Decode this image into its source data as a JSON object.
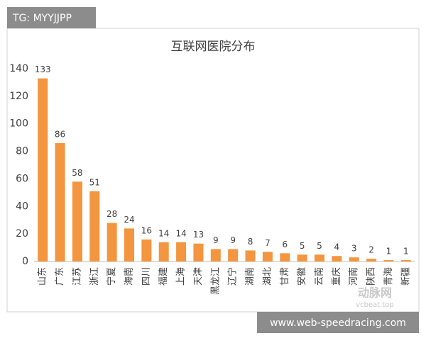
{
  "header": {
    "tag": "TG: MYYJJPP"
  },
  "watermark": {
    "logo": "动脉网",
    "site": "vcbeat.top"
  },
  "footer": {
    "url": "www.web-speedracing.com"
  },
  "chart_data": {
    "type": "bar",
    "title": "互联网医院分布",
    "categories": [
      "山东",
      "广东",
      "江苏",
      "浙江",
      "宁夏",
      "海南",
      "四川",
      "福建",
      "上海",
      "天津",
      "黑龙江",
      "辽宁",
      "湖南",
      "湖北",
      "甘肃",
      "安徽",
      "云南",
      "重庆",
      "河南",
      "陕西",
      "青海",
      "新疆"
    ],
    "values": [
      133,
      86,
      58,
      51,
      28,
      24,
      16,
      14,
      14,
      13,
      9,
      9,
      8,
      7,
      6,
      5,
      5,
      4,
      3,
      2,
      1,
      1
    ],
    "color": "#f4953f",
    "ylim": [
      0,
      140
    ],
    "yticks": [
      0,
      20,
      40,
      60,
      80,
      100,
      120,
      140
    ],
    "grid": false
  }
}
